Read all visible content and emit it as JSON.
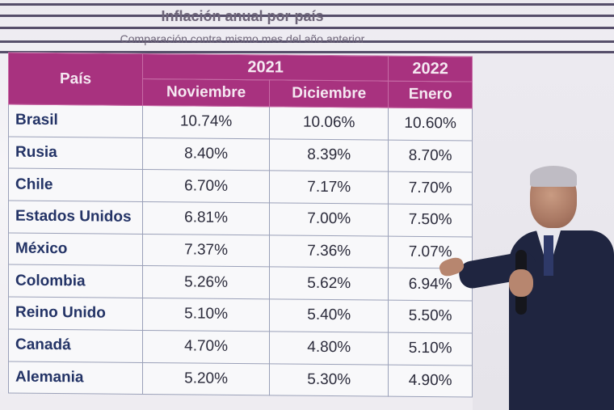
{
  "slide": {
    "title": "Inflación anual por país",
    "subtitle": "Comparación contra mismo mes del año anterior"
  },
  "table": {
    "country_header": "País",
    "year_2021": "2021",
    "year_2022": "2022",
    "months": [
      "Noviembre",
      "Diciembre",
      "Enero"
    ],
    "rows": [
      {
        "country": "Brasil",
        "nov": "10.74%",
        "dic": "10.06%",
        "ene": "10.60%"
      },
      {
        "country": "Rusia",
        "nov": "8.40%",
        "dic": "8.39%",
        "ene": "8.70%"
      },
      {
        "country": "Chile",
        "nov": "6.70%",
        "dic": "7.17%",
        "ene": "7.70%"
      },
      {
        "country": "Estados Unidos",
        "nov": "6.81%",
        "dic": "7.00%",
        "ene": "7.50%"
      },
      {
        "country": "México",
        "nov": "7.37%",
        "dic": "7.36%",
        "ene": "7.07%"
      },
      {
        "country": "Colombia",
        "nov": "5.26%",
        "dic": "5.62%",
        "ene": "6.94%"
      },
      {
        "country": "Reino Unido",
        "nov": "5.10%",
        "dic": "5.40%",
        "ene": "5.50%"
      },
      {
        "country": "Canadá",
        "nov": "4.70%",
        "dic": "4.80%",
        "ene": "5.10%"
      },
      {
        "country": "Alemania",
        "nov": "5.20%",
        "dic": "5.30%",
        "ene": "4.90%"
      }
    ]
  },
  "colors": {
    "header_bg": "#a8327f",
    "country_text": "#233366"
  }
}
